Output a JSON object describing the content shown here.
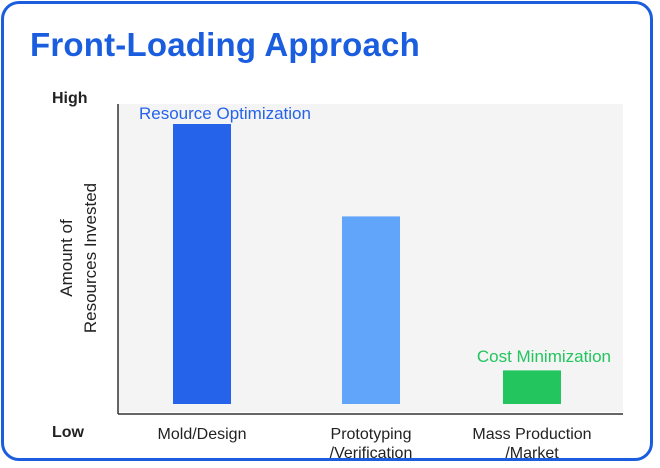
{
  "title": "Front-Loading Approach",
  "chart_data": {
    "type": "bar",
    "title": "Front-Loading Approach",
    "ylabel_lines": [
      "Amount of",
      "Resources Invested"
    ],
    "y_high_label": "High",
    "y_low_label": "Low",
    "ylim": [
      0,
      100
    ],
    "grid": false,
    "categories": [
      [
        "Mold/Design"
      ],
      [
        "Prototyping",
        "/Verification"
      ],
      [
        "Mass Production",
        "/Market"
      ]
    ],
    "values": [
      100,
      67,
      12
    ],
    "bar_colors": [
      "#2563eb",
      "#60a5fa",
      "#22c55e"
    ],
    "annotations": [
      {
        "text": "Resource Optimization",
        "bar": 0,
        "color": "#2563eb"
      },
      {
        "text": "Cost Minimization",
        "bar": 2,
        "color": "#22c55e"
      }
    ]
  }
}
